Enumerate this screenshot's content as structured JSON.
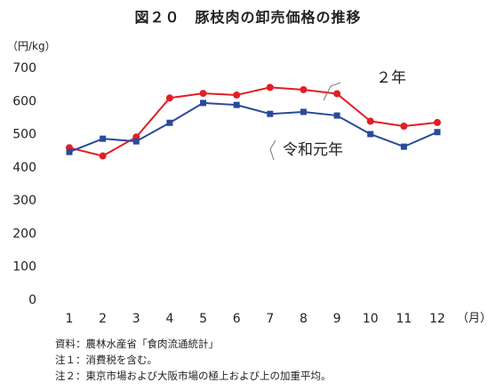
{
  "title": "図２０　豚枝肉の卸売価格の推移",
  "chart_data": {
    "type": "line",
    "title": "図２０　豚枝肉の卸売価格の推移",
    "ylabel": "（円/kg）",
    "xlabel": "（月）",
    "categories": [
      "1",
      "2",
      "3",
      "4",
      "5",
      "6",
      "7",
      "8",
      "9",
      "10",
      "11",
      "12"
    ],
    "yticks": [
      "0",
      "100",
      "200",
      "300",
      "400",
      "500",
      "600",
      "700"
    ],
    "ylim": [
      0,
      700
    ],
    "grid": false,
    "series": [
      {
        "name": "２年",
        "color": "#e31e24",
        "marker": "circle",
        "values": [
          458,
          433,
          490,
          608,
          622,
          617,
          640,
          633,
          621,
          538,
          523,
          534
        ]
      },
      {
        "name": "令和元年",
        "color": "#2a4a9a",
        "marker": "square",
        "values": [
          445,
          485,
          477,
          533,
          593,
          587,
          560,
          566,
          555,
          499,
          461,
          505
        ]
      }
    ]
  },
  "notes": [
    "資料：農林水産省「食肉流通統計」",
    "注１：消費税を含む。",
    "注２：東京市場および大阪市場の極上および上の加重平均。"
  ]
}
